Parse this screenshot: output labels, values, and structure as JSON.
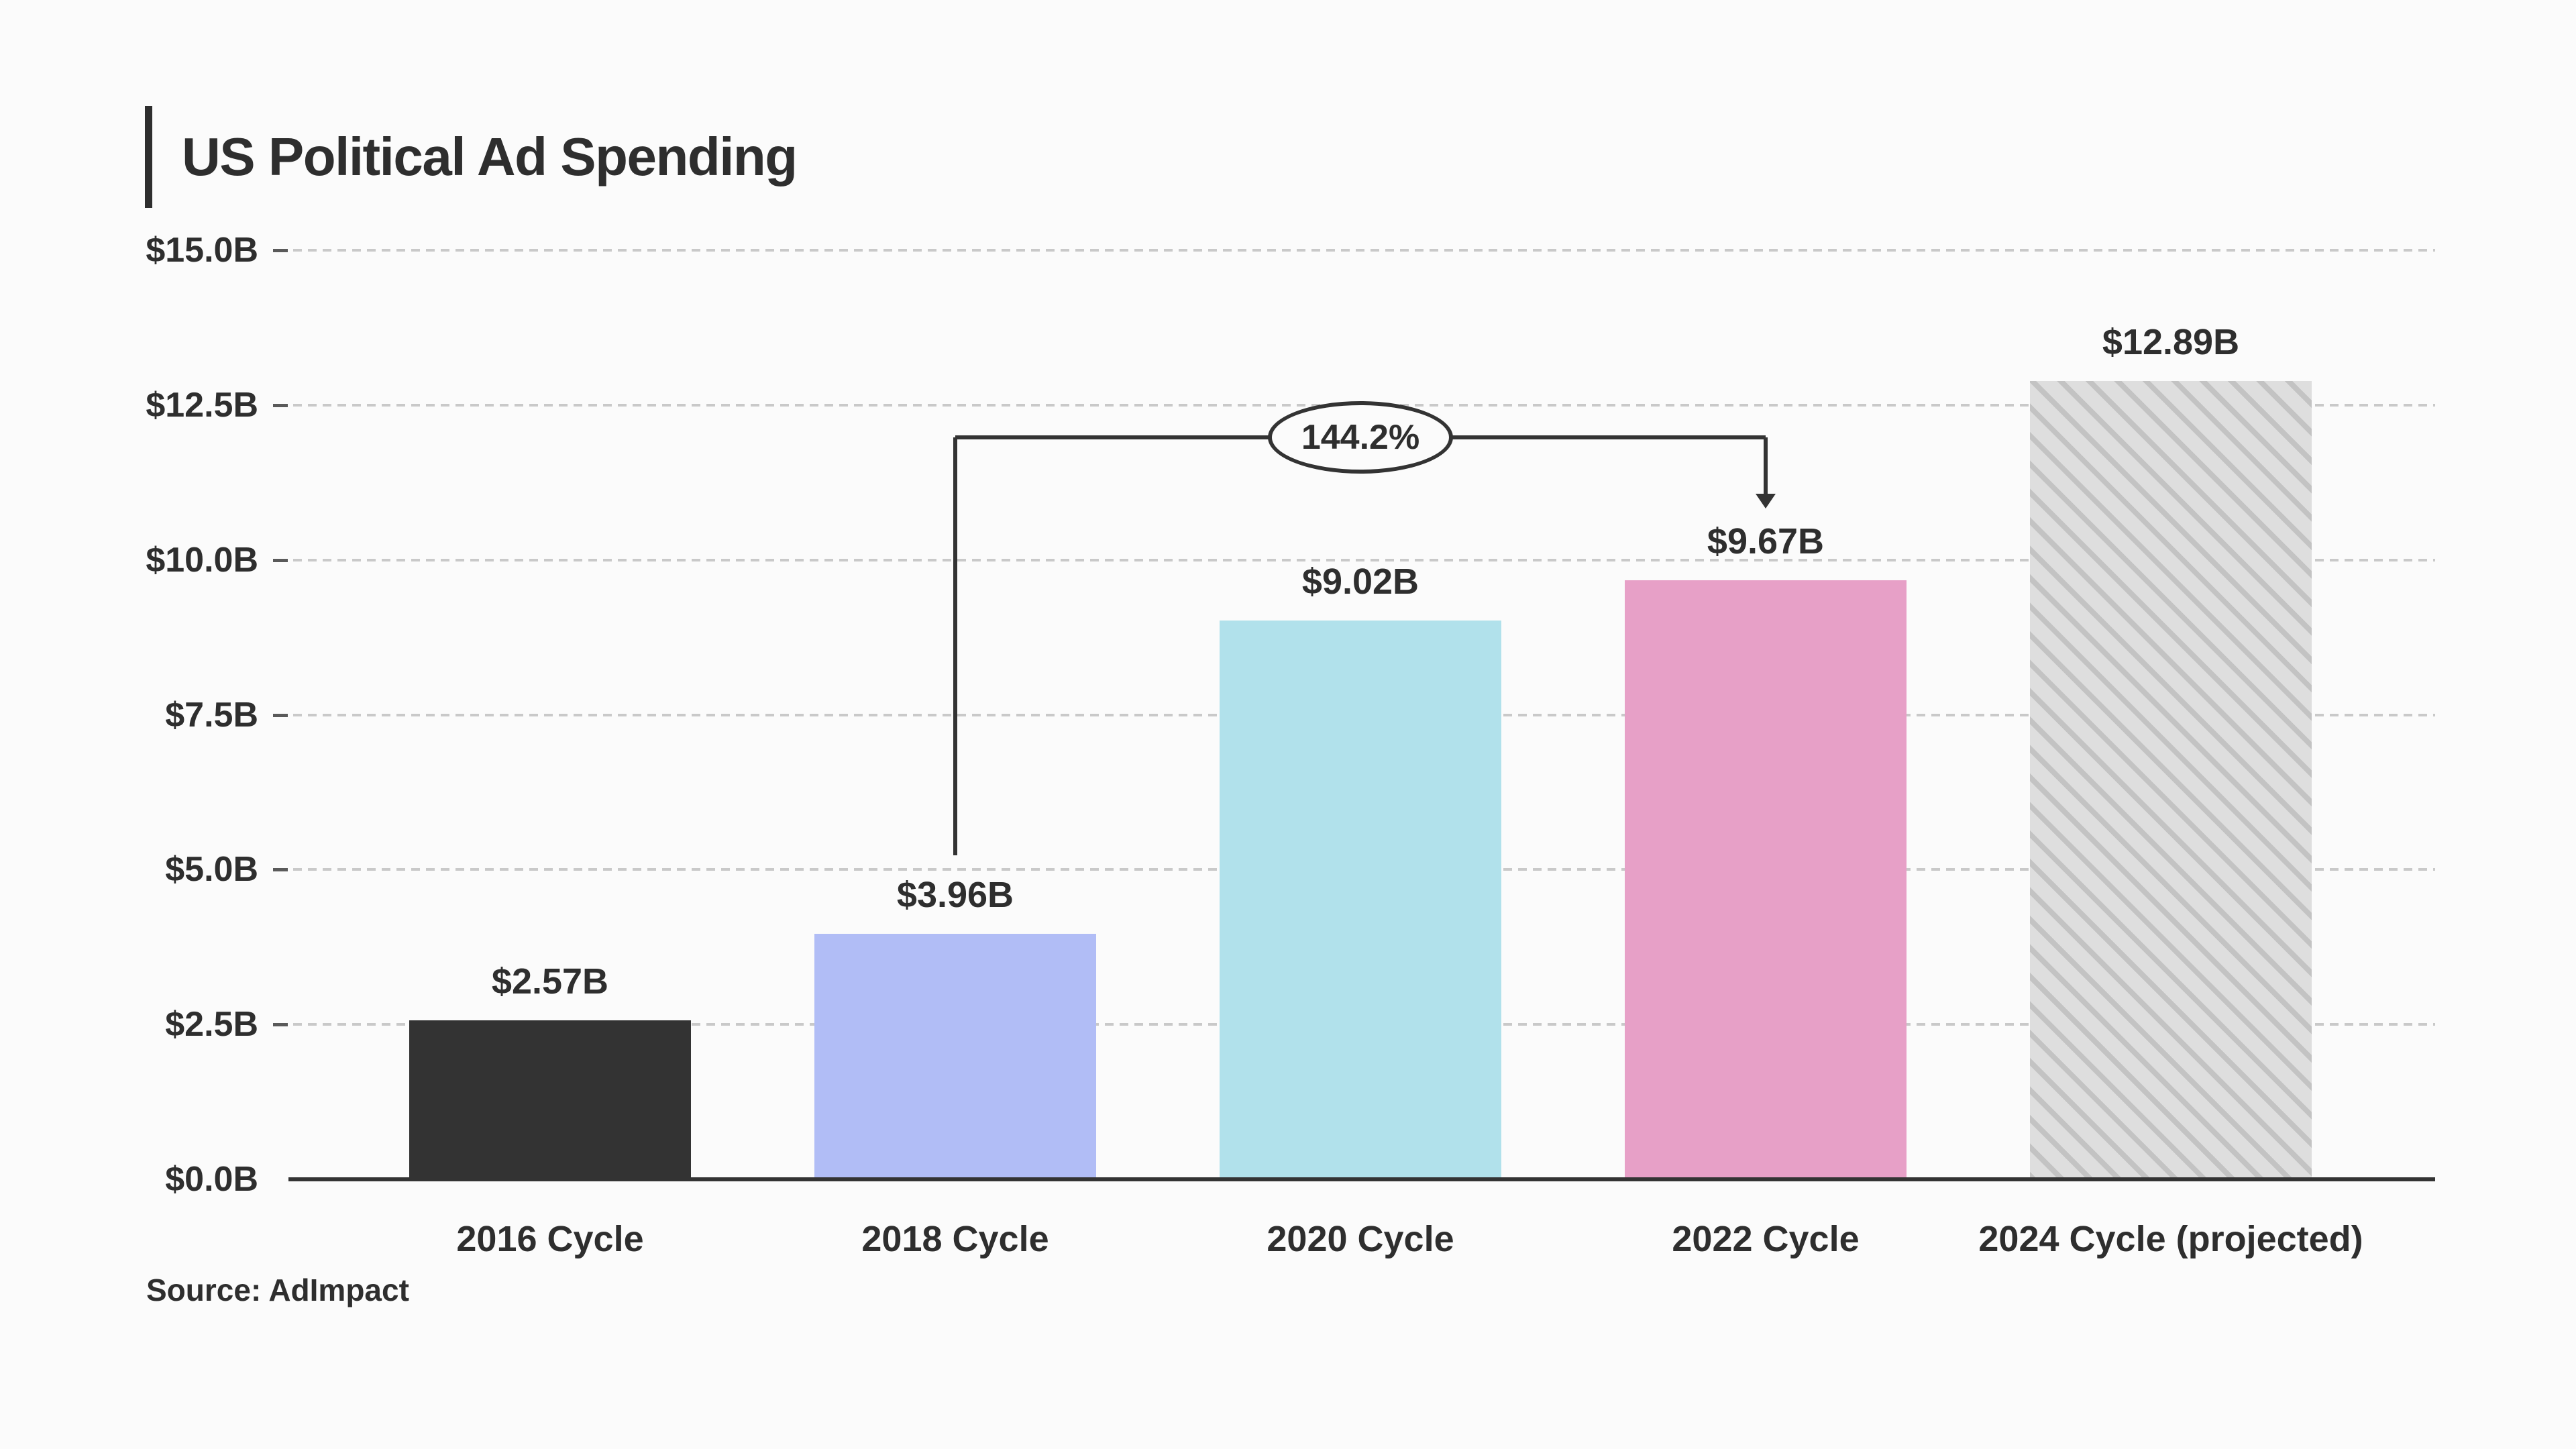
{
  "header": {
    "title": "US Political Ad Spending"
  },
  "footer": {
    "source": "Source: AdImpact"
  },
  "chart_data": {
    "type": "bar",
    "title": "US Political Ad Spending",
    "unit": "USD billions",
    "categories": [
      "2016 Cycle",
      "2018 Cycle",
      "2020 Cycle",
      "2022 Cycle",
      "2024 Cycle (projected)"
    ],
    "values": [
      2.57,
      3.96,
      9.02,
      9.67,
      12.89
    ],
    "bar_labels": [
      "$2.57B",
      "$3.96B",
      "$9.02B",
      "$9.67B",
      "$12.89B"
    ],
    "bar_colors": [
      "#333333",
      "#b1bdf6",
      "#b1e1eb",
      "#e7a0c7",
      "#dedede"
    ],
    "bar_patterns": [
      null,
      null,
      null,
      null,
      "diagonal-hatch"
    ],
    "hatch_color": "#c3c3c3",
    "ylim": [
      0,
      15
    ],
    "ytick_step": 2.5,
    "yticks": [
      {
        "value": 15,
        "label": "$15.0B"
      },
      {
        "value": 12.5,
        "label": "$12.5B"
      },
      {
        "value": 10,
        "label": "$10.0B"
      },
      {
        "value": 7.5,
        "label": "$7.5B"
      },
      {
        "value": 5,
        "label": "$5.0B"
      },
      {
        "value": 2.5,
        "label": "$2.5B"
      },
      {
        "value": 0,
        "label": "$0.0B"
      }
    ],
    "grid": "horizontal-dashed",
    "legend": "none",
    "annotation": {
      "text": "144.2%",
      "from_category": "2018 Cycle",
      "to_category": "2022 Cycle",
      "from_index": 1,
      "to_index": 3
    },
    "source": "Source: AdImpact",
    "colors": {
      "background": "#fbfbfb",
      "text": "#2e2e2e",
      "axis": "#333333",
      "gridline": "#c9c9c9",
      "tick": "#5a5a5a"
    }
  }
}
